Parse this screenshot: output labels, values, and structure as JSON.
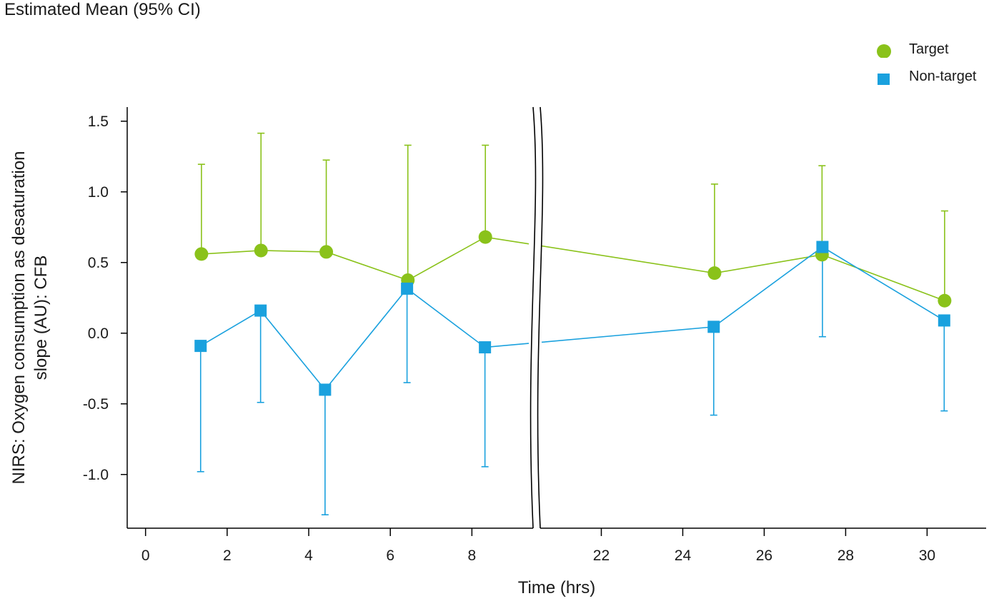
{
  "chart_data": {
    "type": "line",
    "title": "Estimated Mean (95% CI)",
    "xlabel": "Time (hrs)",
    "ylabel_line1": "NIRS: Oxygen consumption as desaturation",
    "ylabel_line2": "slope (AU): CFB",
    "axis_break": [
      9.5,
      20.5
    ],
    "xlim_left": [
      -0.45,
      9.5
    ],
    "xlim_right": [
      20.5,
      31.45
    ],
    "xticks": [
      0,
      2,
      4,
      6,
      8,
      22,
      24,
      26,
      28,
      30
    ],
    "ylim": [
      -1.38,
      1.6
    ],
    "yticks": [
      1.5,
      1.0,
      0.5,
      0.0,
      -0.5,
      -1.0
    ],
    "ytick_labels": [
      "1.5",
      "1.0",
      "0.5",
      "0.0",
      "-0.5",
      "-1.0"
    ],
    "legend_position": "top-right",
    "series": [
      {
        "name": "Target",
        "color": "#8ac21a",
        "marker": "circle",
        "x": [
          1.37,
          2.83,
          4.43,
          6.43,
          8.33,
          24.78,
          27.42,
          30.43
        ],
        "y": [
          0.56,
          0.585,
          0.575,
          0.375,
          0.68,
          0.425,
          0.555,
          0.23
        ],
        "upper": [
          1.195,
          1.415,
          1.225,
          1.33,
          1.33,
          1.055,
          1.185,
          0.865
        ],
        "lower": [
          null,
          null,
          null,
          null,
          null,
          null,
          null,
          null
        ]
      },
      {
        "name": "Non-target",
        "color": "#1aa1de",
        "marker": "square",
        "x": [
          1.35,
          2.82,
          4.4,
          6.41,
          8.32,
          24.76,
          27.43,
          30.42
        ],
        "y": [
          -0.09,
          0.16,
          -0.4,
          0.315,
          -0.1,
          0.045,
          0.61,
          0.09
        ],
        "upper": [
          null,
          null,
          null,
          null,
          null,
          null,
          null,
          null
        ],
        "lower": [
          -0.98,
          -0.49,
          -1.285,
          -0.35,
          -0.945,
          -0.58,
          -0.025,
          -0.55
        ]
      }
    ]
  }
}
